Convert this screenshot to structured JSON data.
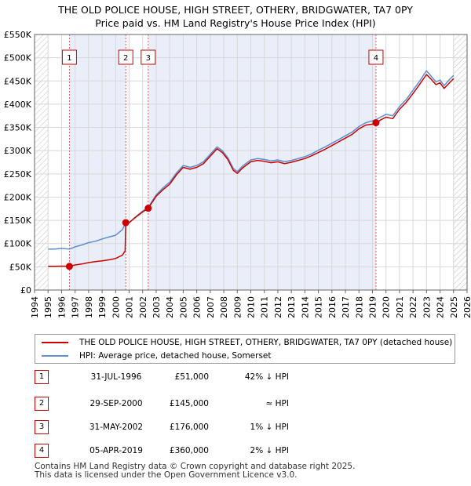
{
  "title_line1": "THE OLD POLICE HOUSE, HIGH STREET, OTHERY, BRIDGWATER, TA7 0PY",
  "title_line2": "Price paid vs. HM Land Registry's House Price Index (HPI)",
  "chart_data": {
    "type": "line",
    "title": "THE OLD POLICE HOUSE, HIGH STREET, OTHERY, BRIDGWATER, TA7 0PY - Price paid vs. HM Land Registry's House Price Index (HPI)",
    "xlabel": "",
    "ylabel": "",
    "xlim": [
      1994,
      2026
    ],
    "ylim": [
      0,
      550000
    ],
    "x_ticks": [
      "1994",
      "1995",
      "1996",
      "1997",
      "1998",
      "1999",
      "2000",
      "2001",
      "2002",
      "2003",
      "2004",
      "2005",
      "2006",
      "2007",
      "2008",
      "2009",
      "2010",
      "2011",
      "2012",
      "2013",
      "2014",
      "2015",
      "2016",
      "2017",
      "2018",
      "2019",
      "2020",
      "2021",
      "2022",
      "2023",
      "2024",
      "2025",
      "2026"
    ],
    "y_ticks": [
      {
        "value": 0,
        "label": "£0"
      },
      {
        "value": 50000,
        "label": "£50K"
      },
      {
        "value": 100000,
        "label": "£100K"
      },
      {
        "value": 150000,
        "label": "£150K"
      },
      {
        "value": 200000,
        "label": "£200K"
      },
      {
        "value": 250000,
        "label": "£250K"
      },
      {
        "value": 300000,
        "label": "£300K"
      },
      {
        "value": 350000,
        "label": "£350K"
      },
      {
        "value": 400000,
        "label": "£400K"
      },
      {
        "value": 450000,
        "label": "£450K"
      },
      {
        "value": 500000,
        "label": "£500K"
      },
      {
        "value": 550000,
        "label": "£550K"
      }
    ],
    "grid": true,
    "shaded_spans": [
      [
        1996.58,
        2000.75
      ],
      [
        2002.41,
        2019.26
      ],
      [
        2025.0,
        2026.0
      ]
    ],
    "hatched_ranges": [
      [
        1994.0,
        1995.0
      ],
      [
        2025.0,
        2026.0
      ]
    ],
    "series": [
      {
        "name": "HPI: Average price, detached house, Somerset",
        "color": "#5b8fd0",
        "x": [
          1995.0,
          1995.5,
          1996.0,
          1996.58,
          1997.0,
          1997.5,
          1998.0,
          1998.5,
          1999.0,
          1999.5,
          2000.0,
          2000.5,
          2000.75,
          2001.0,
          2001.5,
          2002.0,
          2002.41,
          2003.0,
          2003.5,
          2004.0,
          2004.5,
          2005.0,
          2005.5,
          2006.0,
          2006.5,
          2007.0,
          2007.5,
          2007.9,
          2008.3,
          2008.7,
          2009.0,
          2009.4,
          2010.0,
          2010.5,
          2011.0,
          2011.5,
          2012.0,
          2012.5,
          2013.0,
          2013.5,
          2014.0,
          2014.5,
          2015.0,
          2015.5,
          2016.0,
          2016.5,
          2017.0,
          2017.5,
          2018.0,
          2018.5,
          2019.0,
          2019.26,
          2019.6,
          2020.0,
          2020.5,
          2021.0,
          2021.5,
          2022.0,
          2022.5,
          2023.0,
          2023.3,
          2023.7,
          2024.0,
          2024.3,
          2024.7,
          2025.0
        ],
        "y": [
          88000,
          88000,
          90000,
          88000,
          93000,
          97000,
          102000,
          105000,
          110000,
          114000,
          118000,
          130000,
          145000,
          145000,
          158000,
          170000,
          178000,
          205000,
          220000,
          232000,
          252000,
          268000,
          264000,
          268000,
          276000,
          292000,
          308000,
          300000,
          285000,
          262000,
          255000,
          267000,
          280000,
          283000,
          281000,
          278000,
          280000,
          276000,
          279000,
          283000,
          287000,
          293000,
          301000,
          308000,
          316000,
          324000,
          332000,
          340000,
          352000,
          360000,
          364000,
          367000,
          372000,
          378000,
          375000,
          395000,
          410000,
          430000,
          450000,
          472000,
          462000,
          448000,
          452000,
          440000,
          453000,
          462000
        ]
      },
      {
        "name": "THE OLD POLICE HOUSE, HIGH STREET, OTHERY, BRIDGWATER, TA7 0PY (detached house)",
        "color": "#cc0000",
        "x": [
          1995.0,
          1995.5,
          1996.0,
          1996.58,
          1997.0,
          1997.5,
          1998.0,
          1998.5,
          1999.0,
          1999.5,
          2000.0,
          2000.5,
          2000.7,
          2000.75,
          2001.0,
          2001.5,
          2002.0,
          2002.41,
          2003.0,
          2003.5,
          2004.0,
          2004.5,
          2005.0,
          2005.5,
          2006.0,
          2006.5,
          2007.0,
          2007.5,
          2007.9,
          2008.3,
          2008.7,
          2009.0,
          2009.4,
          2010.0,
          2010.5,
          2011.0,
          2011.5,
          2012.0,
          2012.5,
          2013.0,
          2013.5,
          2014.0,
          2014.5,
          2015.0,
          2015.5,
          2016.0,
          2016.5,
          2017.0,
          2017.5,
          2018.0,
          2018.5,
          2019.0,
          2019.26,
          2019.6,
          2020.0,
          2020.5,
          2021.0,
          2021.5,
          2022.0,
          2022.5,
          2023.0,
          2023.3,
          2023.7,
          2024.0,
          2024.3,
          2024.7,
          2025.0
        ],
        "y": [
          51000,
          51000,
          51500,
          51000,
          54000,
          56000,
          59000,
          61000,
          63000,
          65000,
          68000,
          75000,
          84000,
          145000,
          145000,
          157000,
          168000,
          176000,
          202000,
          216000,
          228000,
          248000,
          264000,
          260000,
          264000,
          272000,
          288000,
          304000,
          296000,
          281000,
          258000,
          251000,
          263000,
          276000,
          279000,
          277000,
          274000,
          276000,
          272000,
          275000,
          279000,
          283000,
          289000,
          296000,
          303000,
          311000,
          319000,
          327000,
          335000,
          347000,
          355000,
          357000,
          360000,
          366000,
          372000,
          369000,
          389000,
          404000,
          423000,
          443000,
          464000,
          455000,
          442000,
          446000,
          434000,
          446000,
          455000
        ]
      }
    ],
    "sales": [
      {
        "num": "1",
        "x": 1996.58,
        "price": 51000
      },
      {
        "num": "2",
        "x": 2000.75,
        "price": 145000
      },
      {
        "num": "3",
        "x": 2002.41,
        "price": 176000
      },
      {
        "num": "4",
        "x": 2019.26,
        "price": 360000
      }
    ]
  },
  "legend": {
    "property_label": "THE OLD POLICE HOUSE, HIGH STREET, OTHERY, BRIDGWATER, TA7 0PY (detached house)",
    "hpi_label": "HPI: Average price, detached house, Somerset"
  },
  "sales_table": [
    {
      "num": "1",
      "date": "31-JUL-1996",
      "price": "£51,000",
      "rel": "42% ↓ HPI"
    },
    {
      "num": "2",
      "date": "29-SEP-2000",
      "price": "£145,000",
      "rel": "≈ HPI"
    },
    {
      "num": "3",
      "date": "31-MAY-2002",
      "price": "£176,000",
      "rel": "1% ↓ HPI"
    },
    {
      "num": "4",
      "date": "05-APR-2019",
      "price": "£360,000",
      "rel": "2% ↓ HPI"
    }
  ],
  "footer_line1": "Contains HM Land Registry data © Crown copyright and database right 2025.",
  "footer_line2": "This data is licensed under the Open Government Licence v3.0."
}
